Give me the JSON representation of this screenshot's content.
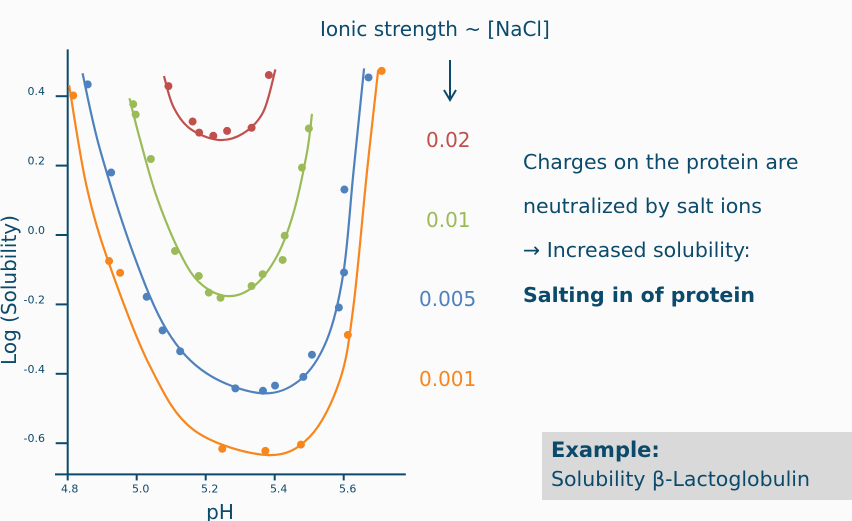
{
  "header": {
    "ionic_strength_label": "Ionic strength ~ [NaCl]",
    "arrow_icon": "arrow-down"
  },
  "text": {
    "line1": "Charges on the protein are",
    "line2": "neutralized by salt ions",
    "line3": "→ Increased solubility:",
    "line4": "Salting in of protein"
  },
  "example": {
    "title": "Example:",
    "body": "Solubility β-Lactoglobulin"
  },
  "colors": {
    "text": "#0b4a6b",
    "red": "#c0504d",
    "green": "#9bbb59",
    "blue": "#4f81bd",
    "orange": "#f7861e",
    "example_bg": "#d9d9d9"
  },
  "chart_data": {
    "type": "scatter",
    "xlabel": "pH",
    "ylabel": "Log (Solubility)",
    "xlim": [
      4.8,
      5.78
    ],
    "ylim": [
      -0.69,
      0.535
    ],
    "xticks": [
      "4.8",
      "5.0",
      "5.2",
      "5.4",
      "5.6"
    ],
    "yticks": [
      "0.4",
      "0.2",
      "0.0",
      "-0.2",
      "-0.4",
      "-0.6"
    ],
    "grid": false,
    "series": [
      {
        "name": "0.02",
        "color": "#c0504d",
        "points": [
          [
            5.092,
            0.429
          ],
          [
            5.162,
            0.327
          ],
          [
            5.181,
            0.295
          ],
          [
            5.222,
            0.286
          ],
          [
            5.262,
            0.3
          ],
          [
            5.333,
            0.309
          ],
          [
            5.383,
            0.461
          ]
        ],
        "curve": [
          [
            5.079,
            0.458
          ],
          [
            5.106,
            0.37
          ],
          [
            5.154,
            0.307
          ],
          [
            5.237,
            0.274
          ],
          [
            5.309,
            0.293
          ],
          [
            5.367,
            0.355
          ],
          [
            5.402,
            0.477
          ]
        ]
      },
      {
        "name": "0.01",
        "color": "#9bbb59",
        "points": [
          [
            4.99,
            0.377
          ],
          [
            4.997,
            0.347
          ],
          [
            5.041,
            0.219
          ],
          [
            5.111,
            -0.046
          ],
          [
            5.18,
            -0.118
          ],
          [
            5.209,
            -0.166
          ],
          [
            5.243,
            -0.181
          ],
          [
            5.333,
            -0.147
          ],
          [
            5.365,
            -0.113
          ],
          [
            5.423,
            -0.072
          ],
          [
            5.429,
            -0.002
          ],
          [
            5.479,
            0.194
          ],
          [
            5.499,
            0.307
          ]
        ],
        "curve": [
          [
            4.979,
            0.394
          ],
          [
            5.01,
            0.274
          ],
          [
            5.058,
            0.11
          ],
          [
            5.126,
            -0.053
          ],
          [
            5.184,
            -0.139
          ],
          [
            5.261,
            -0.176
          ],
          [
            5.338,
            -0.149
          ],
          [
            5.406,
            -0.062
          ],
          [
            5.454,
            0.062
          ],
          [
            5.493,
            0.235
          ],
          [
            5.508,
            0.349
          ]
        ]
      },
      {
        "name": "0.005",
        "color": "#4f81bd",
        "points": [
          [
            4.858,
            0.434
          ],
          [
            4.926,
            0.18
          ],
          [
            5.029,
            -0.178
          ],
          [
            5.075,
            -0.275
          ],
          [
            5.126,
            -0.335
          ],
          [
            5.286,
            -0.442
          ],
          [
            5.366,
            -0.449
          ],
          [
            5.401,
            -0.434
          ],
          [
            5.483,
            -0.409
          ],
          [
            5.508,
            -0.345
          ],
          [
            5.586,
            -0.209
          ],
          [
            5.601,
            -0.108
          ],
          [
            5.602,
            0.131
          ],
          [
            5.672,
            0.454
          ]
        ],
        "curve": [
          [
            4.843,
            0.466
          ],
          [
            4.894,
            0.245
          ],
          [
            4.99,
            -0.053
          ],
          [
            5.087,
            -0.274
          ],
          [
            5.203,
            -0.399
          ],
          [
            5.362,
            -0.456
          ],
          [
            5.473,
            -0.418
          ],
          [
            5.551,
            -0.303
          ],
          [
            5.599,
            -0.11
          ],
          [
            5.628,
            0.178
          ],
          [
            5.659,
            0.48
          ]
        ]
      },
      {
        "name": "0.001",
        "color": "#f7861e",
        "points": [
          [
            4.816,
            0.402
          ],
          [
            4.92,
            -0.075
          ],
          [
            4.952,
            -0.109
          ],
          [
            5.248,
            -0.616
          ],
          [
            5.373,
            -0.622
          ],
          [
            5.476,
            -0.604
          ],
          [
            5.612,
            -0.288
          ],
          [
            5.71,
            0.473
          ]
        ],
        "curve": [
          [
            4.804,
            0.432
          ],
          [
            4.855,
            0.139
          ],
          [
            4.923,
            -0.091
          ],
          [
            5.039,
            -0.379
          ],
          [
            5.164,
            -0.561
          ],
          [
            5.377,
            -0.634
          ],
          [
            5.502,
            -0.581
          ],
          [
            5.589,
            -0.418
          ],
          [
            5.628,
            -0.207
          ],
          [
            5.667,
            0.178
          ],
          [
            5.7,
            0.476
          ]
        ]
      }
    ]
  }
}
